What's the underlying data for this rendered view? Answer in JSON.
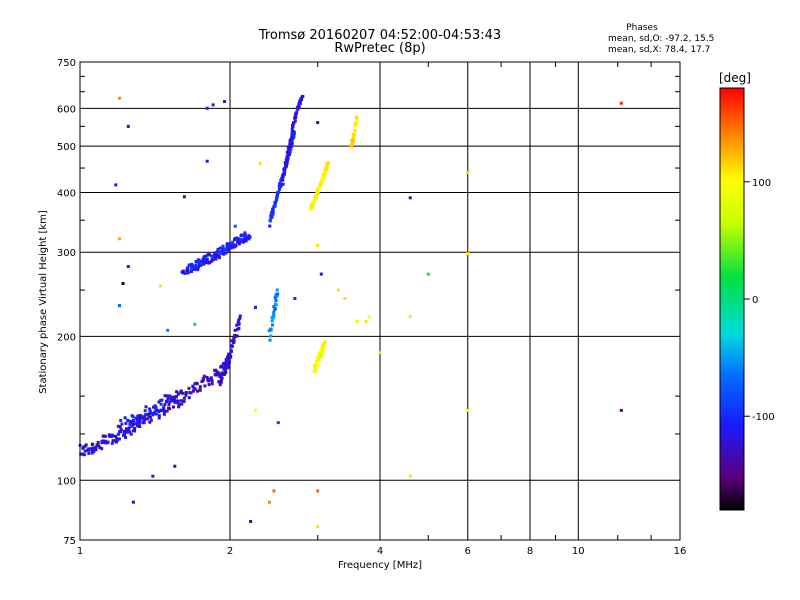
{
  "chart_data": {
    "type": "scatter",
    "title": "Tromsø 20160207 04:52:00-04:53:43",
    "subtitle": "RwPretec (8p)",
    "stats_title": "Phases",
    "stats_lines": [
      "mean, sd,O: -97.2, 15.5",
      "mean, sd,X:  78.4, 17.7"
    ],
    "xlabel": "Frequency [MHz]",
    "ylabel": "Stationary phase Virtual Height [km]",
    "x_scale": "log",
    "y_scale": "log",
    "xlim": [
      1,
      16
    ],
    "ylim": [
      75,
      750
    ],
    "x_ticks": [
      1,
      2,
      4,
      6,
      8,
      10,
      16
    ],
    "x_tick_labels": [
      "1",
      "2",
      "4",
      "6",
      "8",
      "10",
      "16"
    ],
    "x_minor_ticks": [
      3,
      5,
      7,
      9,
      12,
      14
    ],
    "x_gridlines": [
      2,
      4,
      6,
      8,
      10
    ],
    "y_ticks": [
      75,
      100,
      200,
      300,
      400,
      500,
      600,
      750
    ],
    "y_tick_labels": [
      "75",
      "100",
      "200",
      "300",
      "400",
      "500",
      "600",
      "750"
    ],
    "y_gridlines": [
      100,
      200,
      300,
      400,
      500,
      600
    ],
    "y_minor_ticks": [
      125,
      150,
      250,
      350,
      450,
      550,
      650,
      700
    ],
    "grid": true,
    "colorbar": {
      "label": "[deg]",
      "range": [
        -180,
        180
      ],
      "ticks": [
        100,
        0,
        -100
      ],
      "tick_labels": [
        "100",
        "0",
        "-100"
      ]
    },
    "trace_segments": [
      {
        "f": [
          1.0,
          1.05,
          1.1,
          1.15,
          1.2,
          1.25,
          1.3,
          1.35
        ],
        "h": [
          115,
          117,
          119,
          122,
          125,
          128,
          132,
          135
        ],
        "phase": -120,
        "spread": 4
      },
      {
        "f": [
          1.35,
          1.45,
          1.55,
          1.65,
          1.75,
          1.85,
          1.95,
          2.0
        ],
        "h": [
          135,
          140,
          146,
          152,
          158,
          165,
          172,
          178
        ],
        "phase": -125,
        "spread": 5
      },
      {
        "f": [
          1.2,
          1.3,
          1.4,
          1.5,
          1.6
        ],
        "h": [
          128,
          135,
          140,
          148,
          150
        ],
        "phase": -110,
        "spread": 5
      },
      {
        "f": [
          1.9,
          1.95,
          2.0,
          2.05,
          2.1
        ],
        "h": [
          160,
          170,
          185,
          200,
          220
        ],
        "phase": -120,
        "spread": 4
      },
      {
        "f": [
          1.6,
          1.7,
          1.8,
          1.9,
          2.0,
          2.1,
          2.2
        ],
        "h": [
          272,
          278,
          286,
          295,
          305,
          315,
          325
        ],
        "phase": -115,
        "spread": 4
      },
      {
        "f": [
          1.65,
          1.75,
          1.85,
          1.95,
          2.05,
          2.15
        ],
        "h": [
          280,
          288,
          297,
          306,
          316,
          328
        ],
        "phase": -100,
        "spread": 4
      },
      {
        "f": [
          2.4,
          2.45,
          2.5,
          2.55,
          2.6,
          2.65,
          2.7
        ],
        "h": [
          345,
          370,
          400,
          430,
          465,
          500,
          540
        ],
        "phase": -95,
        "spread": 5
      },
      {
        "f": [
          2.55,
          2.6,
          2.65,
          2.7,
          2.75,
          2.8
        ],
        "h": [
          420,
          470,
          520,
          570,
          610,
          640
        ],
        "phase": -115,
        "spread": 5
      },
      {
        "f": [
          2.9,
          2.95,
          3.0,
          3.05,
          3.1,
          3.15
        ],
        "h": [
          370,
          385,
          400,
          420,
          440,
          460
        ],
        "phase": 100,
        "spread": 5
      },
      {
        "f": [
          2.95,
          3.0,
          3.05,
          3.1
        ],
        "h": [
          170,
          178,
          185,
          192
        ],
        "phase": 95,
        "spread": 4
      },
      {
        "f": [
          3.5,
          3.55,
          3.6
        ],
        "h": [
          500,
          530,
          580
        ],
        "phase": 110,
        "spread": 4
      },
      {
        "f": [
          2.4,
          2.45,
          2.5
        ],
        "h": [
          200,
          225,
          250
        ],
        "phase": -60,
        "spread": 4
      }
    ],
    "scattered_points": [
      {
        "f": 1.2,
        "h": 630,
        "phase": 140
      },
      {
        "f": 1.25,
        "h": 550,
        "phase": -140
      },
      {
        "f": 1.18,
        "h": 415,
        "phase": -110
      },
      {
        "f": 1.2,
        "h": 320,
        "phase": 130
      },
      {
        "f": 1.25,
        "h": 280,
        "phase": -120
      },
      {
        "f": 1.22,
        "h": 258,
        "phase": -170
      },
      {
        "f": 1.2,
        "h": 232,
        "phase": -70
      },
      {
        "f": 1.4,
        "h": 102,
        "phase": -110
      },
      {
        "f": 1.28,
        "h": 90,
        "phase": -120
      },
      {
        "f": 1.55,
        "h": 107,
        "phase": -150
      },
      {
        "f": 1.62,
        "h": 390,
        "phase": 100
      },
      {
        "f": 1.62,
        "h": 392,
        "phase": -120
      },
      {
        "f": 1.8,
        "h": 600,
        "phase": -115
      },
      {
        "f": 1.85,
        "h": 610,
        "phase": -110
      },
      {
        "f": 1.95,
        "h": 620,
        "phase": -120
      },
      {
        "f": 1.8,
        "h": 465,
        "phase": -115
      },
      {
        "f": 2.3,
        "h": 460,
        "phase": 110
      },
      {
        "f": 2.25,
        "h": 230,
        "phase": -110
      },
      {
        "f": 2.25,
        "h": 140,
        "phase": 100
      },
      {
        "f": 2.2,
        "h": 82,
        "phase": -140
      },
      {
        "f": 2.4,
        "h": 90,
        "phase": 140
      },
      {
        "f": 2.45,
        "h": 95,
        "phase": 150
      },
      {
        "f": 2.5,
        "h": 132,
        "phase": -90
      },
      {
        "f": 2.7,
        "h": 240,
        "phase": -100
      },
      {
        "f": 3.0,
        "h": 560,
        "phase": -140
      },
      {
        "f": 3.0,
        "h": 310,
        "phase": 110
      },
      {
        "f": 3.05,
        "h": 270,
        "phase": -115
      },
      {
        "f": 3.0,
        "h": 95,
        "phase": 150
      },
      {
        "f": 3.0,
        "h": 80,
        "phase": 110
      },
      {
        "f": 3.3,
        "h": 250,
        "phase": 110
      },
      {
        "f": 3.4,
        "h": 240,
        "phase": 110
      },
      {
        "f": 3.6,
        "h": 215,
        "phase": 80
      },
      {
        "f": 3.75,
        "h": 215,
        "phase": 110
      },
      {
        "f": 3.8,
        "h": 220,
        "phase": 100
      },
      {
        "f": 4.0,
        "h": 185,
        "phase": 110
      },
      {
        "f": 4.6,
        "h": 390,
        "phase": -140
      },
      {
        "f": 4.6,
        "h": 220,
        "phase": 110
      },
      {
        "f": 4.6,
        "h": 102,
        "phase": 110
      },
      {
        "f": 5.0,
        "h": 270,
        "phase": 20
      },
      {
        "f": 6.0,
        "h": 440,
        "phase": 110
      },
      {
        "f": 6.0,
        "h": 298,
        "phase": 110
      },
      {
        "f": 6.0,
        "h": 140,
        "phase": 100
      },
      {
        "f": 12.2,
        "h": 615,
        "phase": 170
      },
      {
        "f": 12.2,
        "h": 140,
        "phase": -150
      },
      {
        "f": 1.45,
        "h": 255,
        "phase": 110
      },
      {
        "f": 1.5,
        "h": 206,
        "phase": -60
      },
      {
        "f": 1.7,
        "h": 212,
        "phase": 20
      },
      {
        "f": 2.05,
        "h": 340,
        "phase": -80
      }
    ]
  }
}
